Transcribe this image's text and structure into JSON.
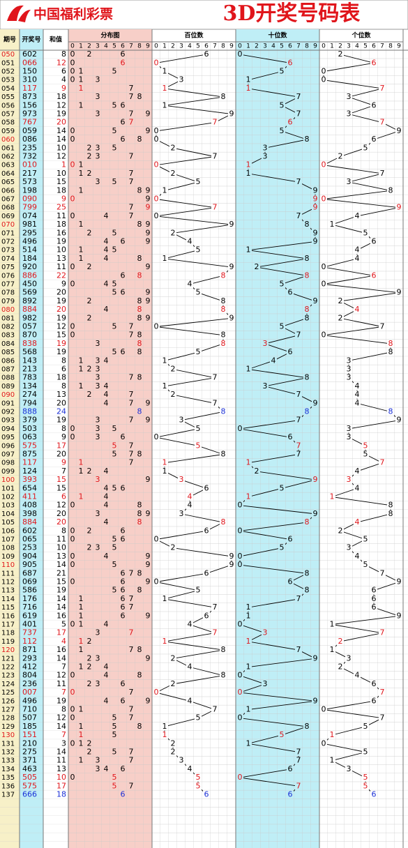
{
  "header": {
    "logo": "中国福利彩票",
    "title": "3D开奖号码表"
  },
  "columns": {
    "period": "期号",
    "number": "开奖号",
    "sum": "和值",
    "distribution": "分布图",
    "hundreds": "百位数",
    "tens": "十位数",
    "units": "个位数",
    "digit_labels": [
      0,
      1,
      2,
      3,
      4,
      5,
      6,
      7,
      8,
      9
    ]
  },
  "rows": [
    {
      "period": "050",
      "number": "602",
      "sum": 8,
      "digits": [
        6,
        0,
        2
      ]
    },
    {
      "period": "051",
      "number": "066",
      "sum": 12,
      "digits": [
        0,
        6,
        6
      ]
    },
    {
      "period": "052",
      "number": "150",
      "sum": 6,
      "digits": [
        1,
        5,
        0
      ]
    },
    {
      "period": "053",
      "number": "310",
      "sum": 4,
      "digits": [
        3,
        1,
        0
      ]
    },
    {
      "period": "054",
      "number": "117",
      "sum": 9,
      "digits": [
        1,
        1,
        7
      ]
    },
    {
      "period": "055",
      "number": "873",
      "sum": 18,
      "digits": [
        8,
        7,
        3
      ]
    },
    {
      "period": "056",
      "number": "156",
      "sum": 12,
      "digits": [
        1,
        5,
        6
      ]
    },
    {
      "period": "057",
      "number": "973",
      "sum": 19,
      "digits": [
        9,
        7,
        3
      ]
    },
    {
      "period": "058",
      "number": "767",
      "sum": 20,
      "digits": [
        7,
        6,
        7
      ]
    },
    {
      "period": "059",
      "number": "059",
      "sum": 14,
      "digits": [
        0,
        5,
        9
      ]
    },
    {
      "period": "060",
      "number": "086",
      "sum": 14,
      "digits": [
        0,
        8,
        6
      ]
    },
    {
      "period": "061",
      "number": "235",
      "sum": 10,
      "digits": [
        2,
        3,
        5
      ]
    },
    {
      "period": "062",
      "number": "732",
      "sum": 12,
      "digits": [
        7,
        3,
        2
      ]
    },
    {
      "period": "063",
      "number": "010",
      "sum": 1,
      "digits": [
        0,
        1,
        0
      ]
    },
    {
      "period": "064",
      "number": "217",
      "sum": 10,
      "digits": [
        2,
        1,
        7
      ]
    },
    {
      "period": "065",
      "number": "573",
      "sum": 15,
      "digits": [
        5,
        7,
        3
      ]
    },
    {
      "period": "066",
      "number": "198",
      "sum": 18,
      "digits": [
        1,
        9,
        8
      ]
    },
    {
      "period": "067",
      "number": "090",
      "sum": 9,
      "digits": [
        0,
        9,
        0
      ]
    },
    {
      "period": "068",
      "number": "799",
      "sum": 25,
      "digits": [
        7,
        9,
        9
      ]
    },
    {
      "period": "069",
      "number": "074",
      "sum": 11,
      "digits": [
        0,
        7,
        4
      ]
    },
    {
      "period": "070",
      "number": "981",
      "sum": 18,
      "digits": [
        9,
        8,
        1
      ]
    },
    {
      "period": "071",
      "number": "295",
      "sum": 16,
      "digits": [
        2,
        9,
        5
      ]
    },
    {
      "period": "072",
      "number": "496",
      "sum": 19,
      "digits": [
        4,
        9,
        6
      ]
    },
    {
      "period": "073",
      "number": "514",
      "sum": 10,
      "digits": [
        5,
        1,
        4
      ]
    },
    {
      "period": "074",
      "number": "184",
      "sum": 13,
      "digits": [
        1,
        8,
        4
      ]
    },
    {
      "period": "075",
      "number": "920",
      "sum": 11,
      "digits": [
        9,
        2,
        0
      ]
    },
    {
      "period": "076",
      "number": "886",
      "sum": 22,
      "digits": [
        8,
        8,
        6
      ]
    },
    {
      "period": "077",
      "number": "450",
      "sum": 9,
      "digits": [
        4,
        5,
        0
      ]
    },
    {
      "period": "078",
      "number": "569",
      "sum": 20,
      "digits": [
        5,
        6,
        9
      ]
    },
    {
      "period": "079",
      "number": "892",
      "sum": 19,
      "digits": [
        8,
        9,
        2
      ]
    },
    {
      "period": "080",
      "number": "884",
      "sum": 20,
      "digits": [
        8,
        8,
        4
      ]
    },
    {
      "period": "081",
      "number": "982",
      "sum": 19,
      "digits": [
        9,
        8,
        2
      ]
    },
    {
      "period": "082",
      "number": "057",
      "sum": 12,
      "digits": [
        0,
        5,
        7
      ]
    },
    {
      "period": "083",
      "number": "870",
      "sum": 15,
      "digits": [
        8,
        7,
        0
      ]
    },
    {
      "period": "084",
      "number": "838",
      "sum": 19,
      "digits": [
        8,
        3,
        8
      ]
    },
    {
      "period": "085",
      "number": "568",
      "sum": 19,
      "digits": [
        5,
        6,
        8
      ]
    },
    {
      "period": "086",
      "number": "143",
      "sum": 8,
      "digits": [
        1,
        4,
        3
      ]
    },
    {
      "period": "087",
      "number": "213",
      "sum": 6,
      "digits": [
        2,
        1,
        3
      ]
    },
    {
      "period": "088",
      "number": "783",
      "sum": 18,
      "digits": [
        7,
        8,
        3
      ]
    },
    {
      "period": "089",
      "number": "134",
      "sum": 8,
      "digits": [
        1,
        3,
        4
      ]
    },
    {
      "period": "090",
      "number": "274",
      "sum": 13,
      "digits": [
        2,
        7,
        4
      ]
    },
    {
      "period": "091",
      "number": "794",
      "sum": 20,
      "digits": [
        7,
        9,
        4
      ]
    },
    {
      "period": "092",
      "number": "888",
      "sum": 24,
      "digits": [
        8,
        8,
        8
      ]
    },
    {
      "period": "093",
      "number": "379",
      "sum": 19,
      "digits": [
        3,
        7,
        9
      ]
    },
    {
      "period": "094",
      "number": "503",
      "sum": 8,
      "digits": [
        5,
        0,
        3
      ]
    },
    {
      "period": "095",
      "number": "063",
      "sum": 9,
      "digits": [
        0,
        6,
        3
      ]
    },
    {
      "period": "096",
      "number": "575",
      "sum": 17,
      "digits": [
        5,
        7,
        5
      ]
    },
    {
      "period": "097",
      "number": "875",
      "sum": 20,
      "digits": [
        8,
        7,
        5
      ]
    },
    {
      "period": "098",
      "number": "117",
      "sum": 9,
      "digits": [
        1,
        1,
        7
      ]
    },
    {
      "period": "099",
      "number": "124",
      "sum": 7,
      "digits": [
        1,
        2,
        4
      ]
    },
    {
      "period": "100",
      "number": "393",
      "sum": 15,
      "digits": [
        3,
        9,
        3
      ]
    },
    {
      "period": "101",
      "number": "654",
      "sum": 15,
      "digits": [
        6,
        5,
        4
      ]
    },
    {
      "period": "102",
      "number": "411",
      "sum": 6,
      "digits": [
        4,
        1,
        1
      ]
    },
    {
      "period": "103",
      "number": "408",
      "sum": 12,
      "digits": [
        4,
        0,
        8
      ]
    },
    {
      "period": "104",
      "number": "398",
      "sum": 20,
      "digits": [
        3,
        9,
        8
      ]
    },
    {
      "period": "105",
      "number": "884",
      "sum": 20,
      "digits": [
        8,
        8,
        4
      ]
    },
    {
      "period": "106",
      "number": "602",
      "sum": 8,
      "digits": [
        6,
        0,
        2
      ]
    },
    {
      "period": "107",
      "number": "065",
      "sum": 11,
      "digits": [
        0,
        6,
        5
      ]
    },
    {
      "period": "108",
      "number": "253",
      "sum": 10,
      "digits": [
        2,
        5,
        3
      ]
    },
    {
      "period": "109",
      "number": "904",
      "sum": 13,
      "digits": [
        9,
        0,
        4
      ]
    },
    {
      "period": "110",
      "number": "905",
      "sum": 14,
      "digits": [
        9,
        0,
        5
      ]
    },
    {
      "period": "111",
      "number": "687",
      "sum": 21,
      "digits": [
        6,
        8,
        7
      ]
    },
    {
      "period": "112",
      "number": "069",
      "sum": 15,
      "digits": [
        0,
        6,
        9
      ]
    },
    {
      "period": "113",
      "number": "586",
      "sum": 19,
      "digits": [
        5,
        8,
        6
      ]
    },
    {
      "period": "114",
      "number": "176",
      "sum": 14,
      "digits": [
        1,
        7,
        6
      ]
    },
    {
      "period": "115",
      "number": "716",
      "sum": 14,
      "digits": [
        7,
        1,
        6
      ]
    },
    {
      "period": "116",
      "number": "619",
      "sum": 16,
      "digits": [
        6,
        1,
        9
      ]
    },
    {
      "period": "117",
      "number": "401",
      "sum": 5,
      "digits": [
        4,
        0,
        1
      ]
    },
    {
      "period": "118",
      "number": "737",
      "sum": 17,
      "digits": [
        7,
        3,
        7
      ]
    },
    {
      "period": "119",
      "number": "112",
      "sum": 4,
      "digits": [
        1,
        1,
        2
      ]
    },
    {
      "period": "120",
      "number": "871",
      "sum": 16,
      "digits": [
        8,
        7,
        1
      ]
    },
    {
      "period": "121",
      "number": "293",
      "sum": 14,
      "digits": [
        2,
        9,
        3
      ]
    },
    {
      "period": "122",
      "number": "412",
      "sum": 7,
      "digits": [
        4,
        1,
        2
      ]
    },
    {
      "period": "123",
      "number": "804",
      "sum": 12,
      "digits": [
        8,
        0,
        4
      ]
    },
    {
      "period": "124",
      "number": "236",
      "sum": 11,
      "digits": [
        2,
        3,
        6
      ]
    },
    {
      "period": "125",
      "number": "007",
      "sum": 7,
      "digits": [
        0,
        0,
        7
      ]
    },
    {
      "period": "126",
      "number": "496",
      "sum": 19,
      "digits": [
        4,
        9,
        6
      ]
    },
    {
      "period": "127",
      "number": "710",
      "sum": 8,
      "digits": [
        7,
        1,
        0
      ]
    },
    {
      "period": "128",
      "number": "507",
      "sum": 12,
      "digits": [
        5,
        0,
        7
      ]
    },
    {
      "period": "129",
      "number": "185",
      "sum": 14,
      "digits": [
        1,
        8,
        5
      ]
    },
    {
      "period": "130",
      "number": "151",
      "sum": 7,
      "digits": [
        1,
        5,
        1
      ]
    },
    {
      "period": "131",
      "number": "210",
      "sum": 3,
      "digits": [
        2,
        1,
        0
      ]
    },
    {
      "period": "132",
      "number": "275",
      "sum": 14,
      "digits": [
        2,
        7,
        5
      ]
    },
    {
      "period": "133",
      "number": "371",
      "sum": 11,
      "digits": [
        3,
        7,
        1
      ]
    },
    {
      "period": "134",
      "number": "463",
      "sum": 13,
      "digits": [
        4,
        6,
        3
      ]
    },
    {
      "period": "135",
      "number": "505",
      "sum": 10,
      "digits": [
        5,
        0,
        5
      ]
    },
    {
      "period": "136",
      "number": "575",
      "sum": 17,
      "digits": [
        5,
        7,
        5
      ]
    },
    {
      "period": "137",
      "number": "666",
      "sum": 18,
      "digits": [
        6,
        6,
        6
      ]
    }
  ]
}
